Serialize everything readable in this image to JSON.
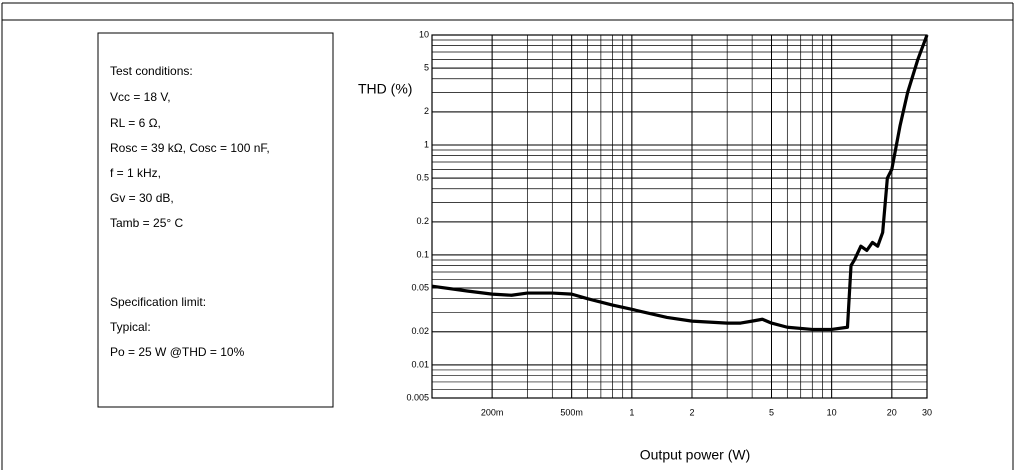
{
  "chart_data": {
    "type": "line",
    "y_label": "THD (%)",
    "x_label": "Output power (W)",
    "annotations": [
      "Test conditions:",
      "Vcc = 18 V,",
      "RL = 6 Ω,",
      "Rosc = 39 kΩ, Cosc = 100 nF,",
      "f = 1 kHz,",
      "Gv = 30 dB,",
      "Tamb = 25° C",
      "Specification limit:",
      "Typical:",
      "Po = 25 W @THD = 10%"
    ],
    "log_x": true,
    "log_y": true,
    "grid": true,
    "minor_grid": true,
    "xlim": [
      0.1,
      30
    ],
    "ylim": [
      0.005,
      10
    ],
    "xticks": [
      {
        "value": 0.2,
        "label": "200m"
      },
      {
        "value": 0.5,
        "label": "500m"
      },
      1,
      2,
      5,
      10,
      20,
      30
    ],
    "yticks": [
      0.005,
      0.01,
      0.02,
      0.05,
      0.1,
      0.2,
      0.5,
      1,
      2,
      5,
      10
    ],
    "series": [
      {
        "color": "#000000",
        "x": [
          0.1,
          0.15,
          0.2,
          0.25,
          0.3,
          0.4,
          0.5,
          0.6,
          0.8,
          1,
          1.5,
          2,
          3,
          3.5,
          4,
          4.5,
          5,
          6,
          8,
          10,
          12,
          12.5,
          13,
          14,
          15,
          16,
          17,
          18,
          19,
          20,
          22,
          24,
          27,
          30
        ],
        "values": [
          0.052,
          0.047,
          0.044,
          0.043,
          0.045,
          0.045,
          0.044,
          0.04,
          0.035,
          0.032,
          0.027,
          0.025,
          0.024,
          0.024,
          0.025,
          0.026,
          0.024,
          0.022,
          0.021,
          0.021,
          0.022,
          0.08,
          0.09,
          0.12,
          0.11,
          0.13,
          0.12,
          0.16,
          0.5,
          0.6,
          1.5,
          3,
          6,
          10
        ]
      }
    ]
  }
}
